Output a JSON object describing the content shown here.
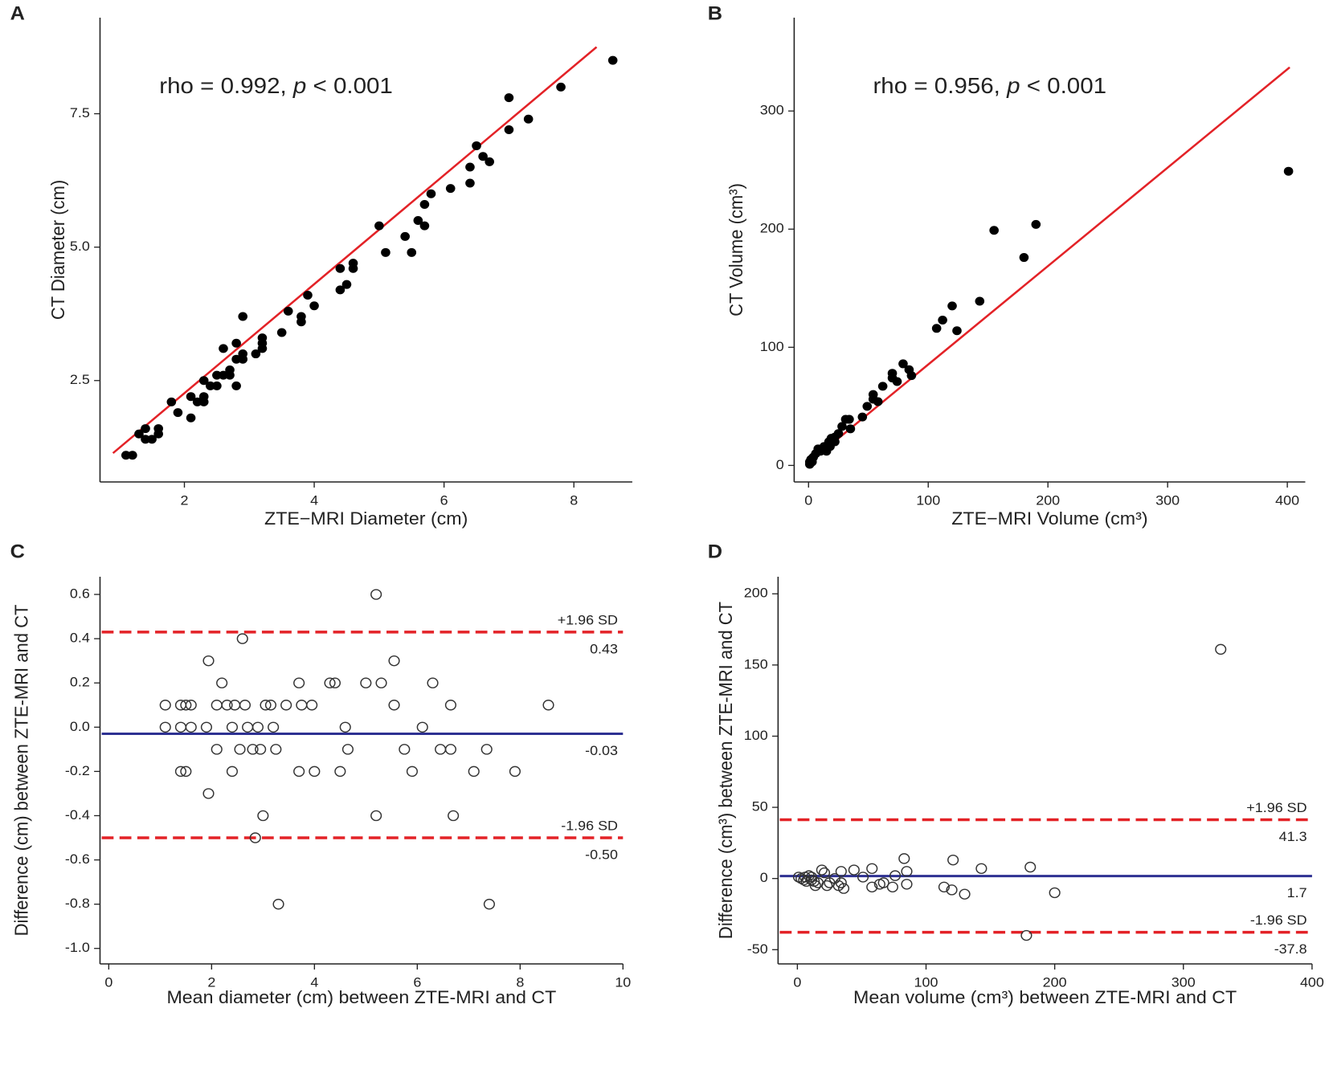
{
  "chart_data": [
    {
      "type": "scatter",
      "panel_label": "A",
      "marker": "filled",
      "color": "#000000",
      "x_label": "ZTE−MRI Diameter (cm)",
      "y_label": "CT Diameter (cm)",
      "annotation": {
        "prefix": "rho = 0.992, ",
        "italic": "p",
        "suffix": " < 0.001"
      },
      "xlim": [
        0.7,
        8.9
      ],
      "ylim": [
        0.6,
        9.3
      ],
      "xticks": [
        2,
        4,
        6,
        8
      ],
      "yticks": [
        2.5,
        {
          "value": 5,
          "label": "5.0"
        },
        7.5
      ],
      "x": [
        1.1,
        1.2,
        1.3,
        1.4,
        1.4,
        1.5,
        1.6,
        1.6,
        1.8,
        1.9,
        2.1,
        2.1,
        2.2,
        2.3,
        2.3,
        2.3,
        2.4,
        2.5,
        2.5,
        2.6,
        2.6,
        2.7,
        2.7,
        2.8,
        2.8,
        2.8,
        2.9,
        2.9,
        2.9,
        3.1,
        3.2,
        3.2,
        3.2,
        3.5,
        3.6,
        3.8,
        3.8,
        3.9,
        4.0,
        4.4,
        4.4,
        4.5,
        4.6,
        4.6,
        5.0,
        5.1,
        5.4,
        5.5,
        5.6,
        5.7,
        5.7,
        5.8,
        6.1,
        6.4,
        6.4,
        6.5,
        6.6,
        6.7,
        7.0,
        7.0,
        7.3,
        7.8,
        8.6
      ],
      "values": [
        1.1,
        1.1,
        1.5,
        1.6,
        1.4,
        1.4,
        1.5,
        1.6,
        2.1,
        1.9,
        1.8,
        2.2,
        2.1,
        2.1,
        2.2,
        2.5,
        2.4,
        2.4,
        2.6,
        3.1,
        2.6,
        2.7,
        2.6,
        2.9,
        2.4,
        3.2,
        2.9,
        3.0,
        3.7,
        3.0,
        3.2,
        3.3,
        3.1,
        3.4,
        3.8,
        3.6,
        3.7,
        4.1,
        3.9,
        4.6,
        4.2,
        4.3,
        4.6,
        4.7,
        5.4,
        4.9,
        5.2,
        4.9,
        5.5,
        5.8,
        5.4,
        6.0,
        6.1,
        6.2,
        6.5,
        6.9,
        6.7,
        6.6,
        7.2,
        7.8,
        7.4,
        8.0,
        8.5
      ],
      "fit_line": {
        "x": [
          0.9,
          8.35
        ],
        "y": [
          1.14,
          8.75
        ],
        "color": "#e32227"
      }
    },
    {
      "type": "scatter",
      "panel_label": "B",
      "marker": "filled",
      "color": "#000000",
      "x_label": "ZTE−MRI Volume (cm³)",
      "y_label": "CT Volume (cm³)",
      "annotation": {
        "prefix": "rho = 0.956, ",
        "italic": "p",
        "suffix": " < 0.001"
      },
      "xlim": [
        -12,
        415
      ],
      "ylim": [
        -14,
        379
      ],
      "xticks": [
        0,
        100,
        200,
        300,
        400
      ],
      "yticks": [
        0,
        100,
        200,
        300
      ],
      "x": [
        401,
        190,
        155,
        180,
        143,
        120,
        112,
        107,
        124,
        79,
        84,
        86,
        70,
        70,
        74,
        62,
        58,
        54,
        54,
        49,
        45,
        31,
        34,
        35,
        28,
        25,
        22,
        19,
        22,
        17,
        18,
        13,
        11,
        8,
        10,
        6,
        4,
        2,
        1,
        3,
        1,
        15
      ],
      "values": [
        249,
        204,
        199,
        176,
        139,
        135,
        123,
        116,
        114,
        86,
        81,
        76,
        78,
        74,
        71,
        67,
        54,
        60,
        56,
        50,
        41,
        39,
        39,
        31,
        33,
        27,
        24,
        23,
        20,
        20,
        16,
        16,
        14,
        14,
        12,
        10,
        7,
        5,
        3,
        3,
        1,
        12
      ],
      "fit_line": {
        "x": [
          0.7,
          402
        ],
        "y": [
          2.7,
          337
        ],
        "color": "#e32227"
      }
    },
    {
      "type": "scatter",
      "panel_label": "C",
      "marker": "open",
      "color": "#333333",
      "x_label": "Mean diameter (cm) between ZTE-MRI and CT",
      "y_label": "Difference (cm) between ZTE-MRI and CT",
      "xlim": [
        -0.17,
        10
      ],
      "ylim": [
        -1.07,
        0.68
      ],
      "xticks": [
        0,
        2,
        4,
        6,
        8,
        10
      ],
      "yticks": [
        0.6,
        0.4,
        0.2,
        {
          "value": 0,
          "label": "0.0"
        },
        -0.2,
        -0.4,
        -0.6,
        -0.8,
        {
          "value": -1,
          "label": "-1.0"
        }
      ],
      "x": [
        1.1,
        1.1,
        1.4,
        1.4,
        1.4,
        1.5,
        1.5,
        1.6,
        1.6,
        1.9,
        1.94,
        1.94,
        2.1,
        2.1,
        2.2,
        2.3,
        2.4,
        2.4,
        2.45,
        2.55,
        2.6,
        2.65,
        2.7,
        2.8,
        2.85,
        2.9,
        2.95,
        3.0,
        3.05,
        3.15,
        3.2,
        3.25,
        3.3,
        3.45,
        3.7,
        3.7,
        3.75,
        3.95,
        4.0,
        4.3,
        4.4,
        4.5,
        4.6,
        4.65,
        5.0,
        5.2,
        5.2,
        5.3,
        5.55,
        5.55,
        5.75,
        5.9,
        6.1,
        6.3,
        6.45,
        6.65,
        6.65,
        6.7,
        7.1,
        7.35,
        7.4,
        7.9,
        8.55
      ],
      "values": [
        0.1,
        0,
        0.1,
        0,
        -0.2,
        -0.2,
        0.1,
        0.1,
        0,
        0,
        0.3,
        -0.3,
        -0.1,
        0.1,
        0.2,
        0.1,
        0,
        -0.2,
        0.1,
        -0.1,
        0.4,
        0.1,
        0,
        -0.1,
        -0.5,
        0,
        -0.1,
        -0.4,
        0.1,
        0.1,
        0,
        -0.1,
        -0.8,
        0.1,
        0.2,
        -0.2,
        0.1,
        0.1,
        -0.2,
        0.2,
        0.2,
        -0.2,
        0,
        -0.1,
        0.2,
        0.6,
        -0.4,
        0.2,
        0.3,
        0.1,
        -0.1,
        -0.2,
        0,
        0.2,
        -0.1,
        -0.1,
        0.1,
        -0.4,
        -0.2,
        -0.1,
        -0.8,
        -0.2,
        0.1
      ],
      "reference_lines": [
        {
          "name": "+1.96 SD",
          "value": 0.43,
          "color": "#e32227",
          "style": "dashed"
        },
        {
          "value": -0.03,
          "color": "#2e3192",
          "style": "solid"
        },
        {
          "name": "-1.96 SD",
          "value": -0.5,
          "value_label": "-0.50",
          "color": "#e32227",
          "style": "dashed"
        }
      ]
    },
    {
      "type": "scatter",
      "panel_label": "D",
      "marker": "open",
      "color": "#333333",
      "x_label": "Mean volume (cm³) between ZTE-MRI and CT",
      "y_label": "Difference (cm³)  between ZTE-MRI and CT",
      "xlim": [
        -15,
        400
      ],
      "ylim": [
        -60,
        212
      ],
      "xticks": [
        0,
        100,
        200,
        300,
        400
      ],
      "yticks": [
        200,
        150,
        100,
        50,
        0,
        -50
      ],
      "x": [
        329,
        181,
        200,
        178,
        143,
        121,
        120,
        114,
        130,
        83,
        85,
        85,
        76,
        74,
        67,
        58,
        58,
        51,
        44,
        34,
        36,
        34,
        29,
        25,
        21,
        19,
        16,
        13,
        11,
        9,
        7,
        6,
        5,
        3,
        1,
        23,
        32,
        64,
        14,
        11
      ],
      "values": [
        161,
        8,
        -10,
        -40,
        7,
        13,
        -8,
        -6,
        -11,
        14,
        5,
        -4,
        2,
        -6,
        -3,
        7,
        -6,
        1,
        6,
        -3,
        -7,
        5,
        0,
        -3,
        4,
        6,
        -3,
        -2,
        -1,
        2,
        -2,
        1,
        -1,
        0,
        1,
        -5,
        -5,
        -4,
        -5,
        1
      ],
      "reference_lines": [
        {
          "name": "+1.96 SD",
          "value": 41.3,
          "color": "#e32227",
          "style": "dashed"
        },
        {
          "value": 1.7,
          "color": "#2e3192",
          "style": "solid"
        },
        {
          "name": "-1.96 SD",
          "value": -37.8,
          "color": "#e32227",
          "style": "dashed"
        }
      ]
    }
  ]
}
